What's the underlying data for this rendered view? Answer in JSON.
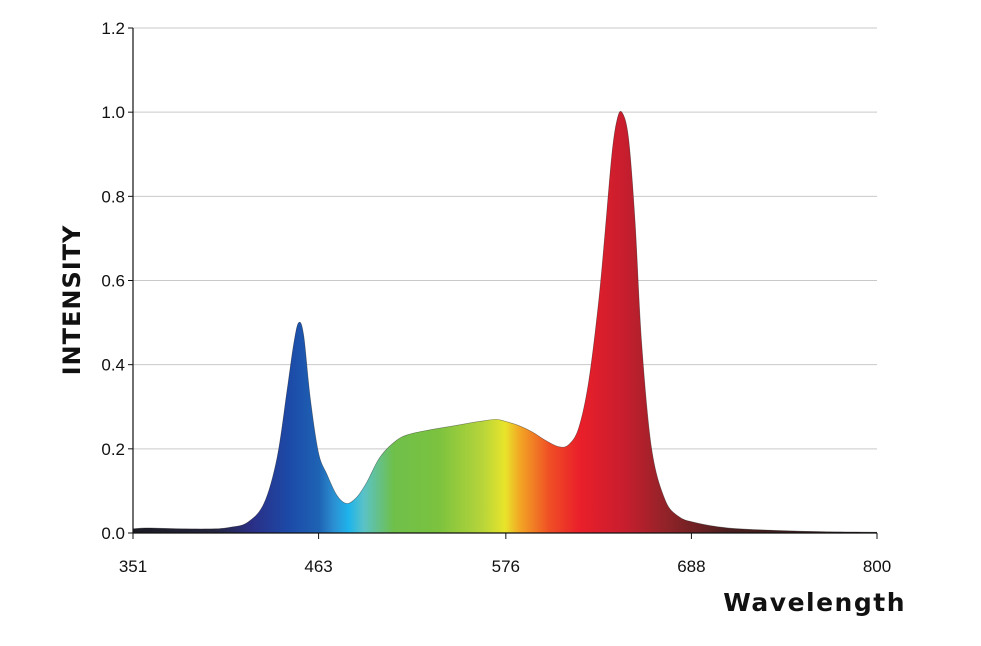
{
  "chart_data": {
    "type": "area",
    "title": "",
    "xlabel": "Wavelength",
    "ylabel": "INTENSITY",
    "xlim": [
      351,
      800
    ],
    "ylim": [
      0,
      1.2
    ],
    "x_ticks": [
      351,
      463,
      576,
      688,
      800
    ],
    "y_ticks": [
      "0.0",
      "0.2",
      "0.4",
      "0.6",
      "0.8",
      "1.0",
      "1.2"
    ],
    "grid": "horizontal",
    "fill": "visible-spectrum gradient",
    "series": [
      {
        "x": [
          351,
          360,
          380,
          400,
          410,
          420,
          430,
          438,
          444,
          448,
          451,
          454,
          458,
          463,
          468,
          474,
          480,
          486,
          492,
          500,
          510,
          518,
          530,
          545,
          560,
          570,
          576,
          584,
          592,
          600,
          608,
          614,
          620,
          626,
          632,
          636,
          640,
          643,
          646,
          650,
          654,
          658,
          664,
          672,
          680,
          690,
          710,
          740,
          770,
          800
        ],
        "y": [
          0.01,
          0.012,
          0.01,
          0.01,
          0.014,
          0.025,
          0.07,
          0.18,
          0.34,
          0.45,
          0.5,
          0.47,
          0.32,
          0.19,
          0.14,
          0.09,
          0.07,
          0.085,
          0.12,
          0.18,
          0.22,
          0.235,
          0.245,
          0.255,
          0.265,
          0.27,
          0.265,
          0.255,
          0.24,
          0.22,
          0.205,
          0.21,
          0.25,
          0.36,
          0.55,
          0.72,
          0.9,
          0.98,
          1.0,
          0.94,
          0.74,
          0.45,
          0.2,
          0.08,
          0.04,
          0.025,
          0.012,
          0.006,
          0.003,
          0.002
        ]
      }
    ]
  }
}
